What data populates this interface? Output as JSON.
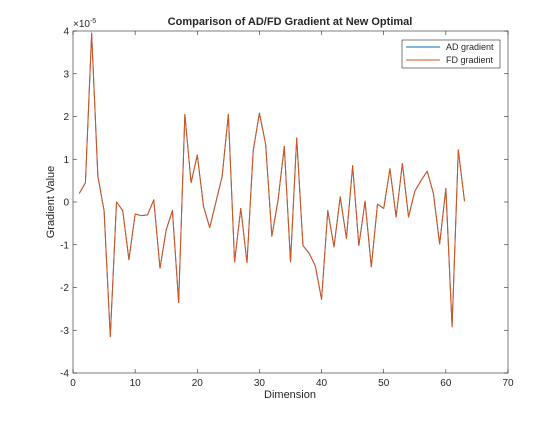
{
  "chart_data": {
    "type": "line",
    "title": "Comparison of AD/FD Gradient at New Optimal",
    "xlabel": "Dimension",
    "ylabel": "Gradient Value",
    "exponent_label": "×10",
    "exponent_power": "-5",
    "xlim": [
      0,
      70
    ],
    "ylim": [
      -4,
      4
    ],
    "xticks": [
      0,
      10,
      20,
      30,
      40,
      50,
      60,
      70
    ],
    "yticks": [
      -4,
      -3,
      -2,
      -1,
      0,
      1,
      2,
      3,
      4
    ],
    "grid": false,
    "legend_position": "top-right",
    "x": [
      1,
      2,
      3,
      4,
      5,
      6,
      7,
      8,
      9,
      10,
      11,
      12,
      13,
      14,
      15,
      16,
      17,
      18,
      19,
      20,
      21,
      22,
      23,
      24,
      25,
      26,
      27,
      28,
      29,
      30,
      31,
      32,
      33,
      34,
      35,
      36,
      37,
      38,
      39,
      40,
      41,
      42,
      43,
      44,
      45,
      46,
      47,
      48,
      49,
      50,
      51,
      52,
      53,
      54,
      55,
      56,
      57,
      58,
      59,
      60,
      61,
      62,
      63
    ],
    "series": [
      {
        "name": "AD gradient",
        "color": "#0072BD",
        "values": [
          0.2,
          0.45,
          3.95,
          0.6,
          -0.2,
          -3.15,
          0.0,
          -0.2,
          -1.35,
          -0.28,
          -0.32,
          -0.3,
          0.05,
          -1.55,
          -0.65,
          -0.2,
          -2.35,
          2.05,
          0.45,
          1.1,
          -0.1,
          -0.6,
          0.0,
          0.6,
          2.05,
          -1.4,
          -0.15,
          -1.42,
          1.2,
          2.08,
          1.35,
          -0.8,
          0.05,
          1.3,
          -1.4,
          1.5,
          -1.02,
          -1.2,
          -1.5,
          -2.28,
          -0.2,
          -1.05,
          0.12,
          -0.85,
          0.85,
          -1.02,
          0.02,
          -1.52,
          -0.05,
          -0.15,
          0.78,
          -0.35,
          0.9,
          -0.35,
          0.25,
          0.5,
          0.72,
          0.2,
          -0.98,
          0.32,
          -2.92,
          1.22,
          0.02
        ]
      },
      {
        "name": "FD gradient",
        "color": "#D95319",
        "values": [
          0.2,
          0.45,
          3.95,
          0.6,
          -0.2,
          -3.15,
          0.0,
          -0.2,
          -1.35,
          -0.28,
          -0.32,
          -0.3,
          0.05,
          -1.55,
          -0.65,
          -0.2,
          -2.35,
          2.05,
          0.45,
          1.1,
          -0.1,
          -0.6,
          0.0,
          0.6,
          2.05,
          -1.4,
          -0.15,
          -1.42,
          1.2,
          2.08,
          1.35,
          -0.8,
          0.05,
          1.3,
          -1.4,
          1.5,
          -1.02,
          -1.2,
          -1.5,
          -2.28,
          -0.2,
          -1.05,
          0.12,
          -0.85,
          0.85,
          -1.02,
          0.02,
          -1.52,
          -0.05,
          -0.15,
          0.78,
          -0.35,
          0.9,
          -0.35,
          0.25,
          0.5,
          0.72,
          0.2,
          -0.98,
          0.32,
          -2.92,
          1.22,
          0.02
        ]
      }
    ]
  }
}
